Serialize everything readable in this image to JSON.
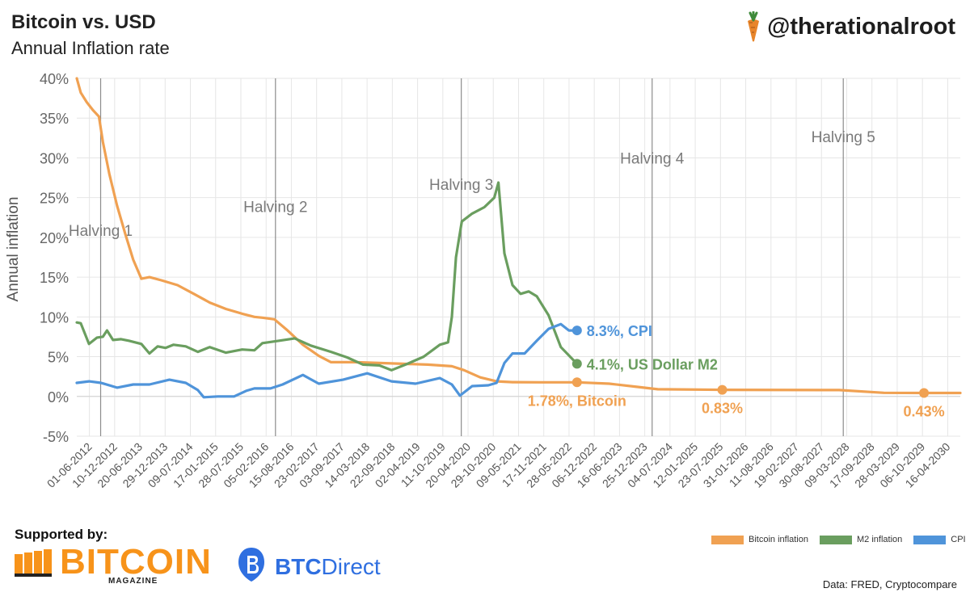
{
  "header": {
    "title": "Bitcoin vs. USD",
    "subtitle": "Annual Inflation rate",
    "handle": "@therationalroot"
  },
  "footer": {
    "supported_label": "Supported by:",
    "sponsor1_word": "BITCOIN",
    "sponsor1_sub": "MAGAZINE",
    "sponsor2_bold": "BTC",
    "sponsor2_rest": "Direct",
    "source": "Data: FRED, Cryptocompare"
  },
  "colors": {
    "bitcoin": "#f0a152",
    "m2": "#6a9e5f",
    "cpi": "#4f94da",
    "halving_line": "#8c8c8c",
    "halving_text": "#7a7a7a",
    "grid": "#e6e6e6"
  },
  "chart_data": {
    "type": "line",
    "ylabel": "Annual inflation",
    "ylim": [
      -5,
      40
    ],
    "y_ticks": [
      -5,
      0,
      5,
      10,
      15,
      20,
      25,
      30,
      35,
      40
    ],
    "y_tick_labels": [
      "-5%",
      "0%",
      "5%",
      "10%",
      "15%",
      "20%",
      "25%",
      "30%",
      "35%",
      "40%"
    ],
    "xlim": [
      "2012-06-01",
      "2030-09-01"
    ],
    "x_tick_labels": [
      "01-06-2012",
      "10-12-2012",
      "20-06-2013",
      "29-12-2013",
      "09-07-2014",
      "17-01-2015",
      "28-07-2015",
      "05-02-2016",
      "15-08-2016",
      "23-02-2017",
      "03-09-2017",
      "14-03-2018",
      "22-09-2018",
      "02-04-2019",
      "11-10-2019",
      "20-04-2020",
      "29-10-2020",
      "09-05-2021",
      "17-11-2021",
      "28-05-2022",
      "06-12-2022",
      "16-06-2023",
      "25-12-2023",
      "04-07-2024",
      "12-01-2025",
      "23-07-2025",
      "31-01-2026",
      "11-08-2026",
      "19-02-2027",
      "30-08-2027",
      "09-03-2028",
      "17-09-2028",
      "28-03-2029",
      "06-10-2029",
      "16-04-2030"
    ],
    "grid": true,
    "legend_position": "bottom-right",
    "legend": [
      "Bitcoin inflation",
      "M2 inflation",
      "CPI"
    ],
    "halvings": [
      {
        "label": "Halving 1",
        "date": "2012-11-28",
        "label_y": 20.2
      },
      {
        "label": "Halving 2",
        "date": "2016-07-09",
        "label_y": 23.2
      },
      {
        "label": "Halving 3",
        "date": "2020-05-11",
        "label_y": 26.0
      },
      {
        "label": "Halving 4",
        "date": "2024-04-20",
        "label_y": 29.3
      },
      {
        "label": "Halving 5",
        "date": "2028-04-01",
        "label_y": 32.0
      }
    ],
    "series": [
      {
        "name": "Bitcoin inflation",
        "key": "bitcoin",
        "points": [
          [
            "2012-06-01",
            40.0
          ],
          [
            "2012-07-01",
            38.2
          ],
          [
            "2012-08-15",
            37.0
          ],
          [
            "2012-10-01",
            36.0
          ],
          [
            "2012-11-15",
            35.2
          ],
          [
            "2012-12-15",
            32.0
          ],
          [
            "2013-02-01",
            28.0
          ],
          [
            "2013-04-01",
            24.0
          ],
          [
            "2013-06-01",
            20.5
          ],
          [
            "2013-08-01",
            17.2
          ],
          [
            "2013-10-01",
            14.8
          ],
          [
            "2013-12-01",
            15.0
          ],
          [
            "2014-03-01",
            14.6
          ],
          [
            "2014-07-01",
            14.0
          ],
          [
            "2014-11-01",
            12.9
          ],
          [
            "2015-03-01",
            11.8
          ],
          [
            "2015-07-01",
            11.0
          ],
          [
            "2015-11-01",
            10.4
          ],
          [
            "2016-02-01",
            10.0
          ],
          [
            "2016-04-01",
            9.9
          ],
          [
            "2016-07-01",
            9.7
          ],
          [
            "2016-10-01",
            8.4
          ],
          [
            "2017-02-01",
            6.5
          ],
          [
            "2017-06-01",
            5.1
          ],
          [
            "2017-09-01",
            4.3
          ],
          [
            "2018-03-01",
            4.3
          ],
          [
            "2018-09-01",
            4.2
          ],
          [
            "2019-03-01",
            4.1
          ],
          [
            "2019-09-01",
            4.0
          ],
          [
            "2020-03-01",
            3.8
          ],
          [
            "2020-06-01",
            3.3
          ],
          [
            "2020-10-01",
            2.4
          ],
          [
            "2021-02-01",
            1.9
          ],
          [
            "2021-06-01",
            1.8
          ],
          [
            "2022-01-01",
            1.78
          ],
          [
            "2022-10-01",
            1.78
          ],
          [
            "2023-06-01",
            1.6
          ],
          [
            "2024-01-01",
            1.2
          ],
          [
            "2024-06-01",
            0.9
          ],
          [
            "2025-10-01",
            0.83
          ],
          [
            "2028-03-01",
            0.8
          ],
          [
            "2029-02-01",
            0.45
          ],
          [
            "2029-12-01",
            0.43
          ],
          [
            "2030-09-01",
            0.43
          ]
        ],
        "endpoints": [
          {
            "date": "2022-10-01",
            "value": 1.78,
            "label": "1.78%, Bitcoin"
          },
          {
            "date": "2025-10-01",
            "value": 0.83,
            "label": "0.83%"
          },
          {
            "date": "2029-12-01",
            "value": 0.43,
            "label": "0.43%"
          }
        ]
      },
      {
        "name": "M2 inflation",
        "key": "m2",
        "points": [
          [
            "2012-06-01",
            9.3
          ],
          [
            "2012-07-01",
            9.2
          ],
          [
            "2012-09-01",
            6.6
          ],
          [
            "2012-11-01",
            7.4
          ],
          [
            "2012-12-15",
            7.5
          ],
          [
            "2013-01-15",
            8.3
          ],
          [
            "2013-03-01",
            7.1
          ],
          [
            "2013-05-01",
            7.2
          ],
          [
            "2013-07-01",
            7.0
          ],
          [
            "2013-10-01",
            6.6
          ],
          [
            "2013-12-01",
            5.4
          ],
          [
            "2014-02-01",
            6.3
          ],
          [
            "2014-04-01",
            6.1
          ],
          [
            "2014-06-01",
            6.5
          ],
          [
            "2014-09-01",
            6.3
          ],
          [
            "2014-12-01",
            5.6
          ],
          [
            "2015-03-01",
            6.2
          ],
          [
            "2015-07-01",
            5.5
          ],
          [
            "2015-11-01",
            5.9
          ],
          [
            "2016-02-01",
            5.8
          ],
          [
            "2016-04-01",
            6.7
          ],
          [
            "2016-08-01",
            7.0
          ],
          [
            "2016-12-01",
            7.3
          ],
          [
            "2017-04-01",
            6.4
          ],
          [
            "2017-09-01",
            5.6
          ],
          [
            "2018-01-01",
            4.9
          ],
          [
            "2018-05-01",
            4.0
          ],
          [
            "2018-09-01",
            3.9
          ],
          [
            "2018-12-01",
            3.3
          ],
          [
            "2019-04-01",
            4.1
          ],
          [
            "2019-08-01",
            5.0
          ],
          [
            "2019-12-01",
            6.5
          ],
          [
            "2020-02-01",
            6.8
          ],
          [
            "2020-03-01",
            10.0
          ],
          [
            "2020-04-01",
            17.5
          ],
          [
            "2020-05-15",
            22.0
          ],
          [
            "2020-08-01",
            23.0
          ],
          [
            "2020-11-01",
            23.8
          ],
          [
            "2021-01-15",
            25.0
          ],
          [
            "2021-02-15",
            26.9
          ],
          [
            "2021-04-01",
            18.0
          ],
          [
            "2021-06-01",
            14.0
          ],
          [
            "2021-08-01",
            12.9
          ],
          [
            "2021-10-01",
            13.2
          ],
          [
            "2021-12-01",
            12.6
          ],
          [
            "2022-03-01",
            10.2
          ],
          [
            "2022-06-01",
            6.2
          ],
          [
            "2022-10-01",
            4.1
          ]
        ],
        "endpoint": {
          "date": "2022-10-01",
          "value": 4.1,
          "label": "4.1%, US Dollar M2"
        }
      },
      {
        "name": "CPI",
        "key": "cpi",
        "points": [
          [
            "2012-06-01",
            1.7
          ],
          [
            "2012-09-01",
            1.9
          ],
          [
            "2012-12-01",
            1.7
          ],
          [
            "2013-04-01",
            1.1
          ],
          [
            "2013-08-01",
            1.5
          ],
          [
            "2013-12-01",
            1.5
          ],
          [
            "2014-05-01",
            2.1
          ],
          [
            "2014-09-01",
            1.7
          ],
          [
            "2014-12-01",
            0.8
          ],
          [
            "2015-01-15",
            -0.1
          ],
          [
            "2015-05-01",
            0.0
          ],
          [
            "2015-09-01",
            0.0
          ],
          [
            "2015-12-01",
            0.7
          ],
          [
            "2016-02-01",
            1.0
          ],
          [
            "2016-06-01",
            1.0
          ],
          [
            "2016-09-01",
            1.5
          ],
          [
            "2017-02-01",
            2.7
          ],
          [
            "2017-06-01",
            1.6
          ],
          [
            "2017-12-01",
            2.1
          ],
          [
            "2018-06-01",
            2.9
          ],
          [
            "2018-12-01",
            1.9
          ],
          [
            "2019-06-01",
            1.6
          ],
          [
            "2019-12-01",
            2.3
          ],
          [
            "2020-03-01",
            1.5
          ],
          [
            "2020-05-01",
            0.1
          ],
          [
            "2020-08-01",
            1.3
          ],
          [
            "2020-12-01",
            1.4
          ],
          [
            "2021-02-01",
            1.7
          ],
          [
            "2021-04-01",
            4.2
          ],
          [
            "2021-06-01",
            5.4
          ],
          [
            "2021-09-01",
            5.4
          ],
          [
            "2021-12-01",
            7.0
          ],
          [
            "2022-03-01",
            8.5
          ],
          [
            "2022-06-01",
            9.1
          ],
          [
            "2022-08-01",
            8.3
          ],
          [
            "2022-10-01",
            8.3
          ]
        ],
        "endpoint": {
          "date": "2022-10-01",
          "value": 8.3,
          "label": "8.3%, CPI"
        }
      }
    ]
  }
}
